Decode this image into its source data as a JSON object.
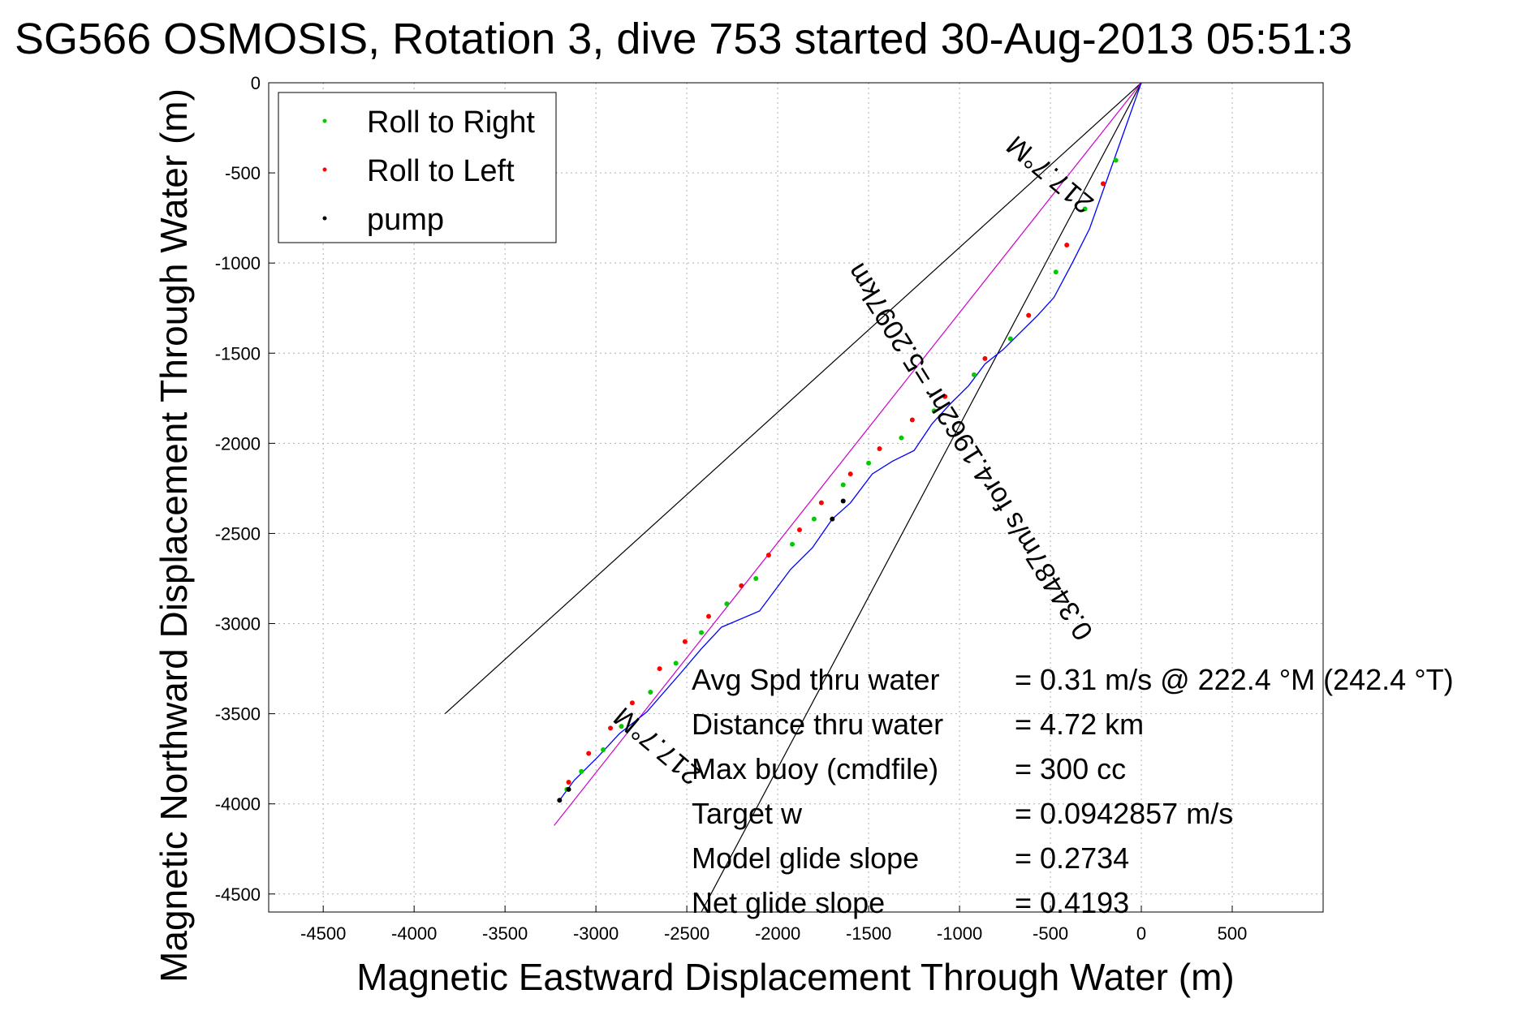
{
  "chart_data": {
    "type": "line",
    "title": "SG566 OSMOSIS, Rotation 3, dive 753 started 30-Aug-2013 05:51:3",
    "xlabel": "Magnetic Eastward Displacement Through Water (m)",
    "ylabel": "Magnetic Northward Displacement Through Water (m)",
    "xlim": [
      -4800,
      1000
    ],
    "ylim": [
      -4600,
      0
    ],
    "xticks": [
      -4500,
      -4000,
      -3500,
      -3000,
      -2500,
      -2000,
      -1500,
      -1000,
      -500,
      0,
      500
    ],
    "yticks": [
      0,
      -500,
      -1000,
      -1500,
      -2000,
      -2500,
      -3000,
      -3500,
      -4000,
      -4500
    ],
    "grid": true,
    "legend": {
      "placement": "top-left",
      "entries": [
        {
          "label": "Roll to Right",
          "color": "#00cc00"
        },
        {
          "label": "Roll to Left",
          "color": "#ff0000"
        },
        {
          "label": "pump",
          "color": "#000000"
        }
      ]
    },
    "track": {
      "color": "#0000ff",
      "x": [
        0,
        -95,
        -190,
        -285,
        -380,
        -480,
        -570,
        -660,
        -760,
        -860,
        -950,
        -1050,
        -1150,
        -1250,
        -1370,
        -1480,
        -1600,
        -1700,
        -1810,
        -1930,
        -2100,
        -2310,
        -2420,
        -2530,
        -2720,
        -2870,
        -2990,
        -3120,
        -3200
      ],
      "y": [
        0,
        -270,
        -540,
        -810,
        -1000,
        -1190,
        -1290,
        -1380,
        -1480,
        -1560,
        -1680,
        -1780,
        -1890,
        -2040,
        -2100,
        -2170,
        -2330,
        -2420,
        -2580,
        -2700,
        -2930,
        -3020,
        -3140,
        -3270,
        -3490,
        -3610,
        -3740,
        -3870,
        -3980
      ]
    },
    "markers": {
      "roll_right": {
        "x": [
          -140,
          -310,
          -470,
          -720,
          -920,
          -1140,
          -1320,
          -1500,
          -1640,
          -1800,
          -1920,
          -2120,
          -2280,
          -2420,
          -2560,
          -2700,
          -2860,
          -2960,
          -3080,
          -3160
        ],
        "y": [
          -430,
          -700,
          -1050,
          -1420,
          -1620,
          -1820,
          -1970,
          -2110,
          -2230,
          -2420,
          -2560,
          -2750,
          -2890,
          -3050,
          -3220,
          -3380,
          -3570,
          -3700,
          -3820,
          -3920
        ]
      },
      "roll_left": {
        "x": [
          -210,
          -410,
          -620,
          -860,
          -1080,
          -1260,
          -1440,
          -1600,
          -1760,
          -1880,
          -2050,
          -2200,
          -2380,
          -2510,
          -2650,
          -2800,
          -2920,
          -3040,
          -3150
        ],
        "y": [
          -560,
          -900,
          -1290,
          -1530,
          -1740,
          -1870,
          -2030,
          -2170,
          -2330,
          -2480,
          -2620,
          -2790,
          -2960,
          -3100,
          -3250,
          -3440,
          -3580,
          -3720,
          -3880
        ]
      },
      "pump": {
        "x": [
          -1700,
          -1640,
          -3200,
          -3150
        ],
        "y": [
          -2420,
          -2320,
          -3980,
          -3920
        ]
      }
    },
    "reference_lines": {
      "bearing_line": {
        "color": "#000000",
        "from": [
          0,
          0
        ],
        "to": [
          -3830,
          -3500
        ]
      },
      "bearing_line_2": {
        "color": "#000000",
        "from": [
          0,
          0
        ],
        "to": [
          -2420,
          -4600
        ]
      },
      "course_line": {
        "color": "#cc00cc",
        "from": [
          0,
          0
        ],
        "to": [
          -3230,
          -4120
        ]
      }
    },
    "annotations": {
      "rotated": [
        {
          "text": "217.7°M",
          "at": [
            -470,
            -470
          ],
          "angle": 40
        },
        {
          "text": "0.34487m/s for4.1962hr =5.2097km",
          "at": [
            -900,
            -2020
          ],
          "angle": 58
        },
        {
          "text": "217.7°M",
          "at": [
            -2630,
            -3640
          ],
          "angle": 40
        }
      ],
      "stats": [
        {
          "label": "Avg Spd thru water",
          "value": "=  0.31 m/s @ 222.4  °M (242.4  °T)"
        },
        {
          "label": "Distance thru water",
          "value": "=  4.72 km"
        },
        {
          "label": "Max buoy (cmdfile)",
          "value": "= 300 cc"
        },
        {
          "label": "Target w",
          "value": "= 0.0942857 m/s"
        },
        {
          "label": "Model glide slope",
          "value": "= 0.2734"
        },
        {
          "label": "Net glide slope",
          "value": "= 0.4193"
        }
      ]
    }
  }
}
